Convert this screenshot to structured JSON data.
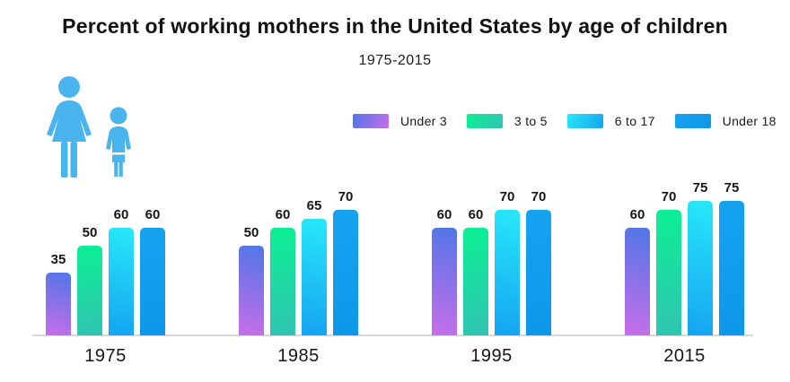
{
  "header": {
    "icon": {
      "name": "mother-and-child-icon",
      "color": "#49b4ee"
    }
  },
  "axis_color": "#d8d8d8",
  "chart_data": {
    "type": "bar",
    "title": "Percent of working mothers in the United States by age of children",
    "subtitle": "1975-2015",
    "categories": [
      "1975",
      "1985",
      "1995",
      "2015"
    ],
    "series": [
      {
        "name": "Under 3",
        "values": [
          35,
          50,
          60,
          60
        ],
        "gradient": [
          "#4f76e7",
          "#c96ee9"
        ]
      },
      {
        "name": "3 to 5",
        "values": [
          50,
          60,
          60,
          70
        ],
        "gradient": [
          "#0bf093",
          "#31c3b3"
        ]
      },
      {
        "name": "6 to 17",
        "values": [
          60,
          65,
          70,
          75
        ],
        "gradient": [
          "#28e8f9",
          "#15a4f1"
        ]
      },
      {
        "name": "Under 18",
        "values": [
          60,
          70,
          70,
          75
        ],
        "gradient": [
          "#15a3f0",
          "#0e97e9"
        ]
      }
    ],
    "unit": "percent",
    "ylim": [
      0,
      100
    ],
    "grid": false,
    "value_labels": true,
    "legend_position": "top-right"
  }
}
